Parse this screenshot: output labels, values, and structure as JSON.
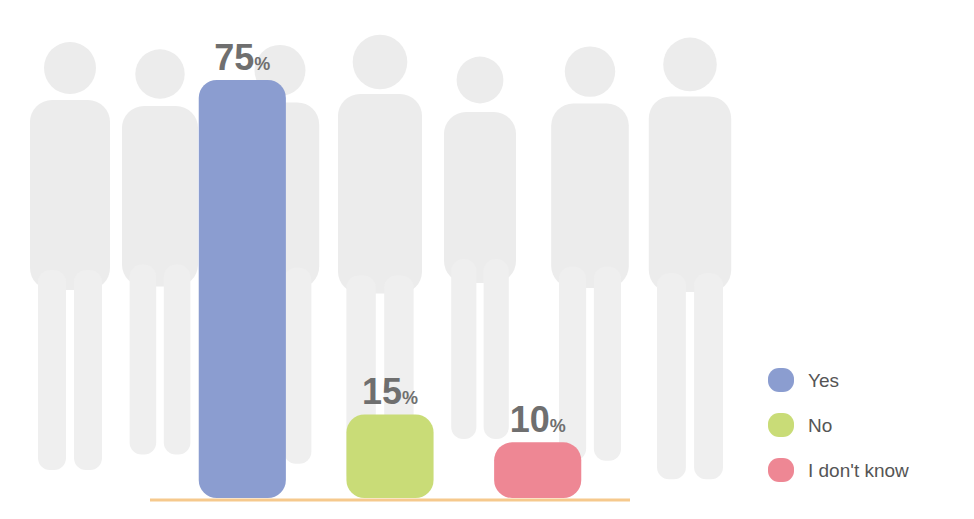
{
  "chart_data": {
    "type": "bar",
    "categories": [
      "Yes",
      "No",
      "I don't know"
    ],
    "values": [
      75,
      15,
      10
    ],
    "value_labels": [
      "75%",
      "15%",
      "10%"
    ],
    "colors": [
      "#8b9dd0",
      "#c9dc77",
      "#ee8794"
    ],
    "ylim": [
      0,
      75
    ],
    "data_labels": true,
    "tick_labels": false,
    "legend": "lower right"
  }
}
